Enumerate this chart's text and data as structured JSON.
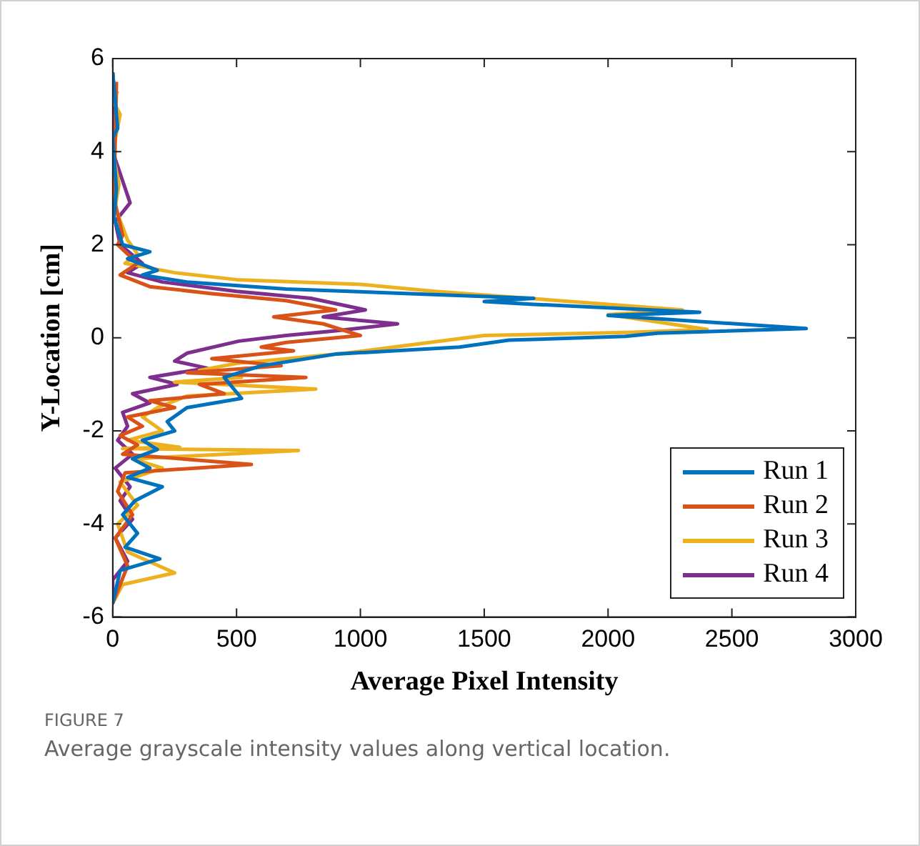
{
  "chart_data": {
    "type": "line",
    "xlabel": "Average Pixel Intensity",
    "ylabel": "Y-Location [cm]",
    "xlim": [
      0,
      3000
    ],
    "ylim": [
      -6,
      6
    ],
    "xticks": [
      0,
      500,
      1000,
      1500,
      2000,
      2500,
      3000
    ],
    "yticks": [
      -6,
      -4,
      -2,
      0,
      2,
      4,
      6
    ],
    "legend": "bottom right",
    "grid": false,
    "marker": "none",
    "line_style": "solid",
    "annotations": [
      "FIGURE 7",
      "Average grayscale intensity values along vertical location."
    ],
    "series": [
      {
        "name": "Run 1",
        "color": "#0072bd",
        "x": [
          0,
          20,
          0,
          15,
          5,
          40,
          150,
          60,
          180,
          120,
          300,
          700,
          1200,
          1700,
          1500,
          1700,
          2370,
          2000,
          2800,
          2200,
          2070,
          1600,
          1400,
          900,
          600,
          450,
          520,
          300,
          220,
          250,
          120,
          180,
          80,
          150,
          60,
          200,
          90,
          40,
          100,
          50,
          190,
          30,
          0
        ],
        "values": [
          5.7,
          4.5,
          4.3,
          3.2,
          2.6,
          2.0,
          1.85,
          1.7,
          1.45,
          1.35,
          1.2,
          1.05,
          0.95,
          0.85,
          0.78,
          0.72,
          0.55,
          0.48,
          0.2,
          0.1,
          0.03,
          -0.05,
          -0.2,
          -0.35,
          -0.6,
          -0.85,
          -1.3,
          -1.5,
          -1.8,
          -2.0,
          -2.2,
          -2.4,
          -2.6,
          -2.8,
          -3.0,
          -3.2,
          -3.5,
          -3.8,
          -4.2,
          -4.5,
          -4.75,
          -5.0,
          -5.7
        ]
      },
      {
        "name": "Run 2",
        "color": "#d95319",
        "x": [
          15,
          10,
          5,
          40,
          20,
          100,
          30,
          150,
          400,
          700,
          900,
          650,
          850,
          1000,
          700,
          600,
          730,
          400,
          680,
          300,
          780,
          350,
          450,
          150,
          250,
          60,
          120,
          30,
          100,
          40,
          560,
          50,
          20,
          80,
          10,
          60,
          0
        ],
        "values": [
          5.5,
          4.2,
          3.0,
          2.2,
          2.0,
          1.6,
          1.35,
          1.1,
          0.95,
          0.8,
          0.6,
          0.45,
          0.3,
          0.05,
          -0.1,
          -0.2,
          -0.28,
          -0.45,
          -0.6,
          -0.75,
          -0.85,
          -1.0,
          -1.2,
          -1.35,
          -1.5,
          -1.7,
          -1.9,
          -2.1,
          -2.3,
          -2.5,
          -2.72,
          -2.9,
          -3.3,
          -3.8,
          -4.3,
          -4.9,
          -5.7
        ]
      },
      {
        "name": "Run 3",
        "color": "#edb120",
        "x": [
          20,
          0,
          30,
          0,
          25,
          10,
          60,
          100,
          50,
          250,
          500,
          1000,
          1300,
          2300,
          2000,
          2400,
          2100,
          1500,
          940,
          500,
          350,
          520,
          250,
          820,
          300,
          180,
          120,
          200,
          60,
          270,
          40,
          750,
          80,
          200,
          30,
          100,
          20,
          60,
          250,
          40,
          0
        ],
        "values": [
          5.3,
          5.1,
          4.8,
          4.0,
          3.3,
          2.8,
          2.1,
          1.8,
          1.6,
          1.4,
          1.25,
          1.15,
          1.0,
          0.6,
          0.5,
          0.18,
          0.12,
          0.05,
          -0.33,
          -0.55,
          -0.7,
          -0.85,
          -0.95,
          -1.1,
          -1.25,
          -1.5,
          -1.7,
          -2.0,
          -2.2,
          -2.35,
          -2.38,
          -2.42,
          -2.6,
          -2.8,
          -3.1,
          -3.6,
          -4.0,
          -4.6,
          -5.05,
          -5.3,
          -5.7
        ]
      },
      {
        "name": "Run 4",
        "color": "#7e2f8e",
        "x": [
          0,
          10,
          0,
          70,
          10,
          30,
          120,
          60,
          200,
          500,
          800,
          1020,
          850,
          1150,
          900,
          700,
          510,
          300,
          250,
          380,
          150,
          260,
          80,
          150,
          40,
          60,
          20,
          80,
          10,
          70,
          30,
          80,
          10,
          60,
          0,
          0
        ],
        "values": [
          5.7,
          5.0,
          4.0,
          2.9,
          2.5,
          2.0,
          1.6,
          1.4,
          1.2,
          1.0,
          0.85,
          0.6,
          0.45,
          0.3,
          0.15,
          0.05,
          -0.07,
          -0.33,
          -0.5,
          -0.65,
          -0.85,
          -1.0,
          -1.2,
          -1.4,
          -1.6,
          -1.9,
          -2.2,
          -2.5,
          -2.8,
          -3.2,
          -3.5,
          -3.9,
          -4.3,
          -4.8,
          -5.2,
          -5.7
        ]
      }
    ]
  }
}
